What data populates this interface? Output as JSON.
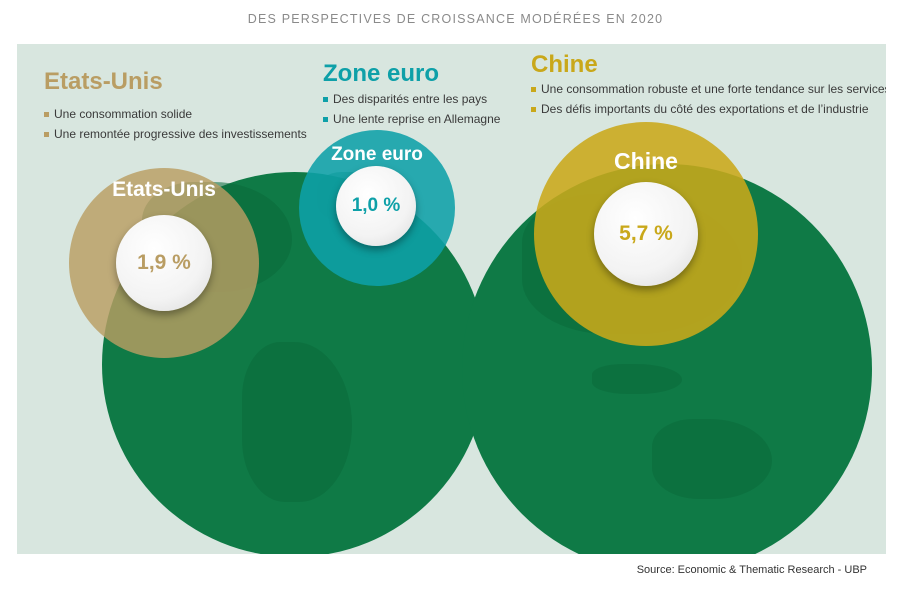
{
  "title": "DES PERSPECTIVES DE CROISSANCE MODÉRÉES EN 2020",
  "colors": {
    "panel_bg": "#d8e6df",
    "globe": "#0f7a46",
    "etats_unis": "#b99d63",
    "zone_euro": "#0ea0a8",
    "chine": "#c9a81a"
  },
  "regions": {
    "etats_unis": {
      "heading": "Etats-Unis",
      "bullets": [
        "Une consommation solide",
        "Une remontée progressive des investissements"
      ],
      "circle_label": "Etats-Unis",
      "growth": "1,9 %"
    },
    "zone_euro": {
      "heading": "Zone euro",
      "bullets": [
        "Des disparités entre les pays",
        "Une lente reprise en Allemagne"
      ],
      "circle_label": "Zone euro",
      "growth": "1,0 %"
    },
    "chine": {
      "heading": "Chine",
      "bullets": [
        "Une consommation robuste et une forte tendance sur les services",
        "Des défis importants du côté des exportations et de l’industrie"
      ],
      "circle_label": "Chine",
      "growth": "5,7 %"
    }
  },
  "source": "Source: Economic & Thematic Research - UBP"
}
